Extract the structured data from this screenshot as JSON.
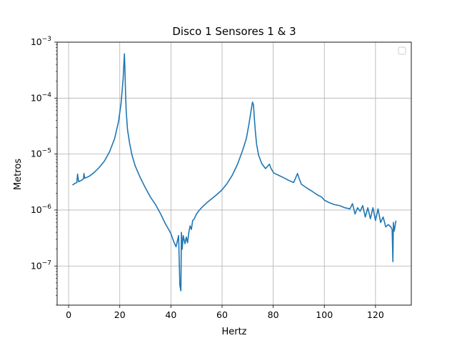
{
  "chart_data": {
    "type": "line",
    "title": "Disco 1 Sensores 1 & 3",
    "xlabel": "Hertz",
    "ylabel": "Metros",
    "xlim": [
      -4.5,
      134
    ],
    "ylim": [
      2e-08,
      0.001
    ],
    "yscale": "log",
    "grid": true,
    "legend": {
      "placement": "top-right",
      "entries": []
    },
    "colors": {
      "line": "#1f77b4",
      "grid": "#b0b0b0"
    },
    "x_ticks": [
      {
        "value": 0,
        "label": "0"
      },
      {
        "value": 20,
        "label": "20"
      },
      {
        "value": 40,
        "label": "40"
      },
      {
        "value": 60,
        "label": "60"
      },
      {
        "value": 80,
        "label": "80"
      },
      {
        "value": 100,
        "label": "100"
      },
      {
        "value": 120,
        "label": "120"
      }
    ],
    "y_ticks": [
      {
        "value": 1e-07,
        "base": "10",
        "exp": "−7"
      },
      {
        "value": 1e-06,
        "base": "10",
        "exp": "−6"
      },
      {
        "value": 1e-05,
        "base": "10",
        "exp": "−5"
      },
      {
        "value": 0.0001,
        "base": "10",
        "exp": "−4"
      },
      {
        "value": 0.001,
        "base": "10",
        "exp": "−3"
      }
    ],
    "series": [
      {
        "x": [
          1.5,
          2.5,
          3.2,
          3.5,
          3.9,
          5,
          5.8,
          6,
          6.3,
          8,
          10,
          12,
          14,
          16,
          18,
          19.5,
          20.5,
          21.3,
          21.8,
          22,
          22.2,
          22.5,
          23,
          23.8,
          24.8,
          26,
          28,
          30,
          32,
          34,
          36,
          37,
          38,
          39,
          40,
          41,
          42,
          43,
          43.5,
          43.9,
          44.1,
          44.4,
          44.8,
          45.5,
          46,
          46.5,
          47,
          47.5,
          48,
          48.5,
          49,
          50,
          51,
          52,
          54,
          56,
          58,
          60,
          62,
          64,
          66,
          68,
          69.5,
          70.5,
          71.3,
          71.9,
          72.3,
          72.6,
          73.0,
          73.5,
          74.3,
          75.5,
          77,
          78.5,
          79.1,
          79.5,
          80.2,
          82,
          84,
          86,
          88,
          89.5,
          90.2,
          91,
          93,
          95,
          97,
          99,
          100,
          102,
          104,
          106,
          108,
          110,
          111,
          112,
          113,
          114,
          115,
          116,
          117,
          118,
          119,
          120,
          121,
          122,
          123,
          124,
          125,
          126,
          126.5,
          126.8,
          127.0,
          127.3,
          127.6,
          128.0
        ],
        "y": [
          2.8e-06,
          3e-06,
          3.1e-06,
          4.4e-06,
          3.2e-06,
          3.4e-06,
          3.6e-06,
          4.5e-06,
          3.7e-06,
          4e-06,
          4.7e-06,
          5.8e-06,
          7.5e-06,
          1.1e-05,
          1.9e-05,
          3.8e-05,
          8e-05,
          0.00022,
          0.00062,
          0.00035,
          0.00015,
          6e-05,
          2.8e-05,
          1.6e-05,
          9.5e-06,
          6.2e-06,
          3.8e-06,
          2.5e-06,
          1.7e-06,
          1.25e-06,
          8.5e-07,
          6.8e-07,
          5.5e-07,
          4.6e-07,
          3.8e-07,
          2.8e-07,
          2.2e-07,
          3.5e-07,
          4.5e-08,
          3.6e-08,
          4e-07,
          2e-07,
          3.5e-07,
          2.5e-07,
          3.3e-07,
          2.6e-07,
          4e-07,
          5.2e-07,
          4.5e-07,
          6.5e-07,
          6.8e-07,
          8.5e-07,
          9.8e-07,
          1.1e-06,
          1.35e-06,
          1.6e-06,
          1.9e-06,
          2.3e-06,
          3e-06,
          4.2e-06,
          6.5e-06,
          1.15e-05,
          1.9e-05,
          3.4e-05,
          5.8e-05,
          8.5e-05,
          7.5e-05,
          4.5e-05,
          2.6e-05,
          1.5e-05,
          9.5e-06,
          6.8e-06,
          5.5e-06,
          6.6e-06,
          5.6e-06,
          5.2e-06,
          4.6e-06,
          4.2e-06,
          3.8e-06,
          3.4e-06,
          3.1e-06,
          4.5e-06,
          3.6e-06,
          2.9e-06,
          2.5e-06,
          2.2e-06,
          1.9e-06,
          1.7e-06,
          1.5e-06,
          1.35e-06,
          1.25e-06,
          1.2e-06,
          1.1e-06,
          1.05e-06,
          1.3e-06,
          8.5e-07,
          1.1e-06,
          9.5e-07,
          1.2e-06,
          7.5e-07,
          1.1e-06,
          7e-07,
          1.1e-06,
          6.5e-07,
          1.05e-06,
          6e-07,
          7.5e-07,
          5e-07,
          5.5e-07,
          5e-07,
          4.5e-07,
          1.2e-07,
          6e-07,
          4.2e-07,
          5e-07,
          6.5e-07
        ]
      }
    ]
  }
}
